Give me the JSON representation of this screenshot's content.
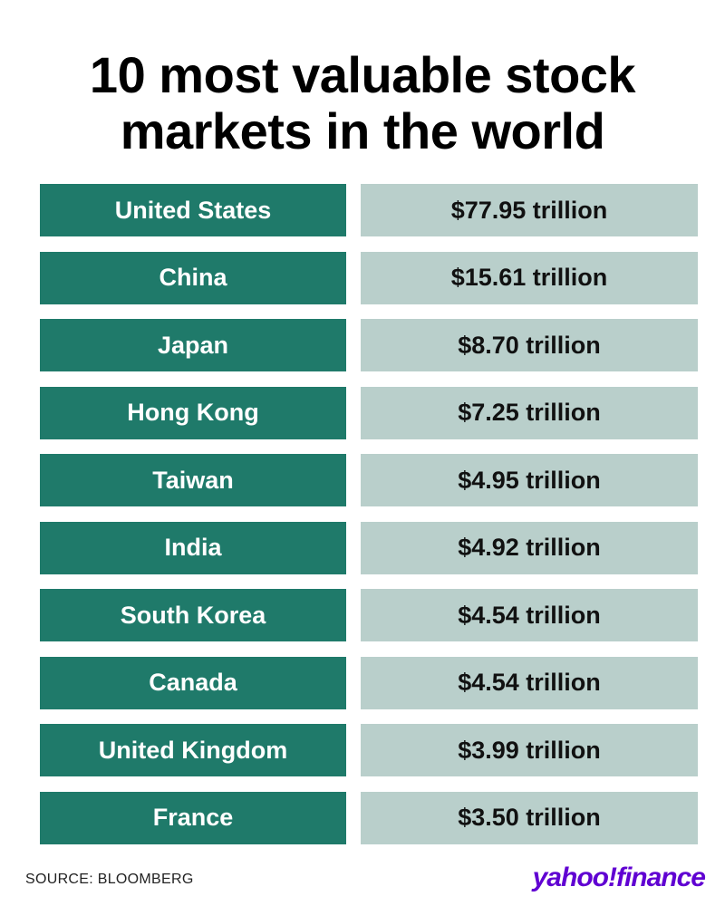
{
  "header": {
    "title_lines": [
      "10 most valuable stock",
      "markets in the world"
    ]
  },
  "table": {
    "rows": [
      [
        "United States",
        "$77.95 trillion"
      ],
      [
        "China",
        "$15.61 trillion"
      ],
      [
        "Japan",
        "$8.70 trillion"
      ],
      [
        "Hong Kong",
        "$7.25 trillion"
      ],
      [
        "Taiwan",
        "$4.95 trillion"
      ],
      [
        "India",
        "$4.92 trillion"
      ],
      [
        "South Korea",
        "$4.54 trillion"
      ],
      [
        "Canada",
        "$4.54 trillion"
      ],
      [
        "United Kingdom",
        "$3.99 trillion"
      ],
      [
        "France",
        "$3.50 trillion"
      ]
    ]
  },
  "footer": {
    "source": "SOURCE: BLOOMBERG",
    "logo": "yahoo!finance"
  }
}
